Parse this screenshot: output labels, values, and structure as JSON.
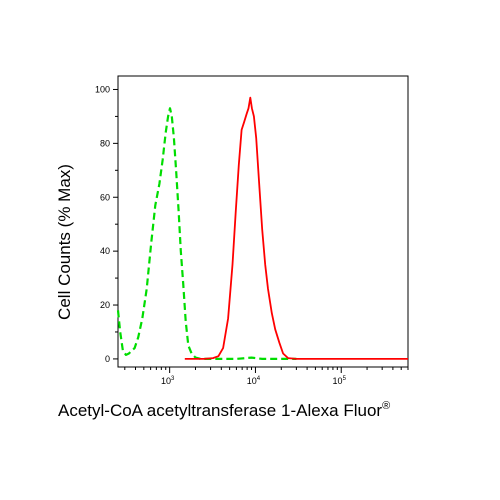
{
  "chart_data": {
    "type": "line",
    "xlabel": "Acetyl-CoA acetyltransferase 1-Alexa Fluor",
    "xlabel_superscript": "®",
    "ylabel": "Cell Counts (% Max)",
    "x_scale": "log",
    "xlim": [
      250,
      600000
    ],
    "ylim": [
      -3,
      105
    ],
    "y_ticks": [
      "0",
      "20",
      "40",
      "60",
      "80",
      "100"
    ],
    "x_ticks": [
      {
        "base": "10",
        "exp": "3",
        "value": 1000
      },
      {
        "base": "10",
        "exp": "4",
        "value": 10000
      },
      {
        "base": "10",
        "exp": "5",
        "value": 100000
      }
    ],
    "series": [
      {
        "color": "#00dd00",
        "dash": "dashed",
        "points": [
          [
            250,
            18
          ],
          [
            265,
            10
          ],
          [
            285,
            3
          ],
          [
            310,
            1.5
          ],
          [
            335,
            2
          ],
          [
            360,
            3
          ],
          [
            390,
            4
          ],
          [
            430,
            8
          ],
          [
            480,
            15
          ],
          [
            540,
            26
          ],
          [
            610,
            43
          ],
          [
            680,
            57
          ],
          [
            760,
            65
          ],
          [
            830,
            74
          ],
          [
            900,
            84
          ],
          [
            960,
            90
          ],
          [
            1010,
            93
          ],
          [
            1060,
            90
          ],
          [
            1120,
            82
          ],
          [
            1190,
            70
          ],
          [
            1270,
            55
          ],
          [
            1350,
            40
          ],
          [
            1440,
            28
          ],
          [
            1540,
            14
          ],
          [
            1650,
            5
          ],
          [
            1800,
            2
          ],
          [
            2000,
            0.5
          ],
          [
            2300,
            0
          ],
          [
            3000,
            0
          ],
          [
            6000,
            0
          ],
          [
            9000,
            0.5
          ],
          [
            12000,
            0
          ],
          [
            30000,
            0
          ]
        ]
      },
      {
        "color": "#ff0000",
        "dash": "solid",
        "points": [
          [
            1500,
            0
          ],
          [
            2500,
            0
          ],
          [
            3200,
            0.3
          ],
          [
            3700,
            1
          ],
          [
            4200,
            4
          ],
          [
            4800,
            15
          ],
          [
            5400,
            35
          ],
          [
            5900,
            55
          ],
          [
            6400,
            72
          ],
          [
            6900,
            85
          ],
          [
            7400,
            88
          ],
          [
            7900,
            91
          ],
          [
            8300,
            93
          ],
          [
            8700,
            97
          ],
          [
            9100,
            93
          ],
          [
            9600,
            90
          ],
          [
            10200,
            82
          ],
          [
            11000,
            66
          ],
          [
            12000,
            48
          ],
          [
            13000,
            35
          ],
          [
            14000,
            26
          ],
          [
            15500,
            17
          ],
          [
            17000,
            11
          ],
          [
            19000,
            6
          ],
          [
            21000,
            2
          ],
          [
            24000,
            0.3
          ],
          [
            30000,
            0
          ],
          [
            60000,
            0
          ],
          [
            150000,
            0
          ],
          [
            300000,
            0
          ],
          [
            600000,
            0
          ]
        ]
      }
    ]
  }
}
